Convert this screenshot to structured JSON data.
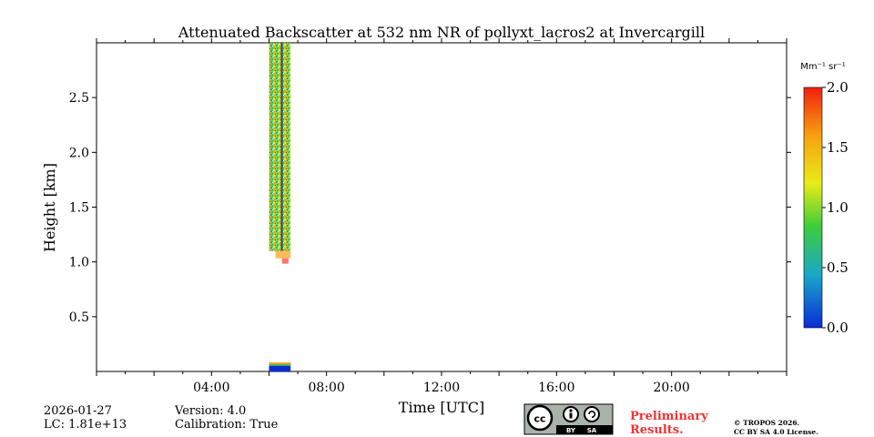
{
  "chart_data": {
    "type": "heatmap",
    "title": "Attenuated Backscatter at 532 nm NR of pollyxt_lacros2 at Invercargill",
    "xlabel": "Time [UTC]",
    "ylabel": "Height [km]",
    "x_range_hours": [
      0,
      24
    ],
    "y_range_km": [
      0,
      3.0
    ],
    "x_ticks": [
      {
        "value": 4,
        "label": "04:00"
      },
      {
        "value": 8,
        "label": "08:00"
      },
      {
        "value": 12,
        "label": "12:00"
      },
      {
        "value": 16,
        "label": "16:00"
      },
      {
        "value": 20,
        "label": "20:00"
      }
    ],
    "y_ticks": [
      {
        "value": 0.5,
        "label": "0.5"
      },
      {
        "value": 1.0,
        "label": "1.0"
      },
      {
        "value": 1.5,
        "label": "1.5"
      },
      {
        "value": 2.0,
        "label": "2.0"
      },
      {
        "value": 2.5,
        "label": "2.5"
      }
    ],
    "data_blocks": [
      {
        "name": "upper-profile",
        "t_start_h": 6.0,
        "t_end_h": 6.75,
        "h_start_km": 1.1,
        "h_end_km": 3.0,
        "value_typical": 1.0
      },
      {
        "name": "lower-overlap",
        "t_start_h": 6.0,
        "t_end_h": 6.75,
        "h_start_km": 0.0,
        "h_end_km": 0.08,
        "value_typical": 0.1
      }
    ],
    "colorbar": {
      "label": "Mm⁻¹ sr⁻¹",
      "range": [
        0.0,
        2.0
      ],
      "ticks": [
        "0.0",
        "0.5",
        "1.0",
        "1.5",
        "2.0"
      ],
      "colors": [
        "#0a2bd6",
        "#1aa8c8",
        "#3ccc3c",
        "#e8ec18",
        "#f8a010",
        "#f02010"
      ]
    }
  },
  "footer": {
    "date": "2026-01-27",
    "lc": "LC: 1.81e+13",
    "version": "Version: 4.0",
    "calibration": "Calibration: True",
    "preliminary_line1": "Preliminary",
    "preliminary_line2": "Results.",
    "copyright_line1": "© TROPOS 2026.",
    "copyright_line2": "CC BY SA 4.0 License.",
    "license_badge": {
      "cc": "cc",
      "by": "BY",
      "sa": "SA"
    }
  }
}
